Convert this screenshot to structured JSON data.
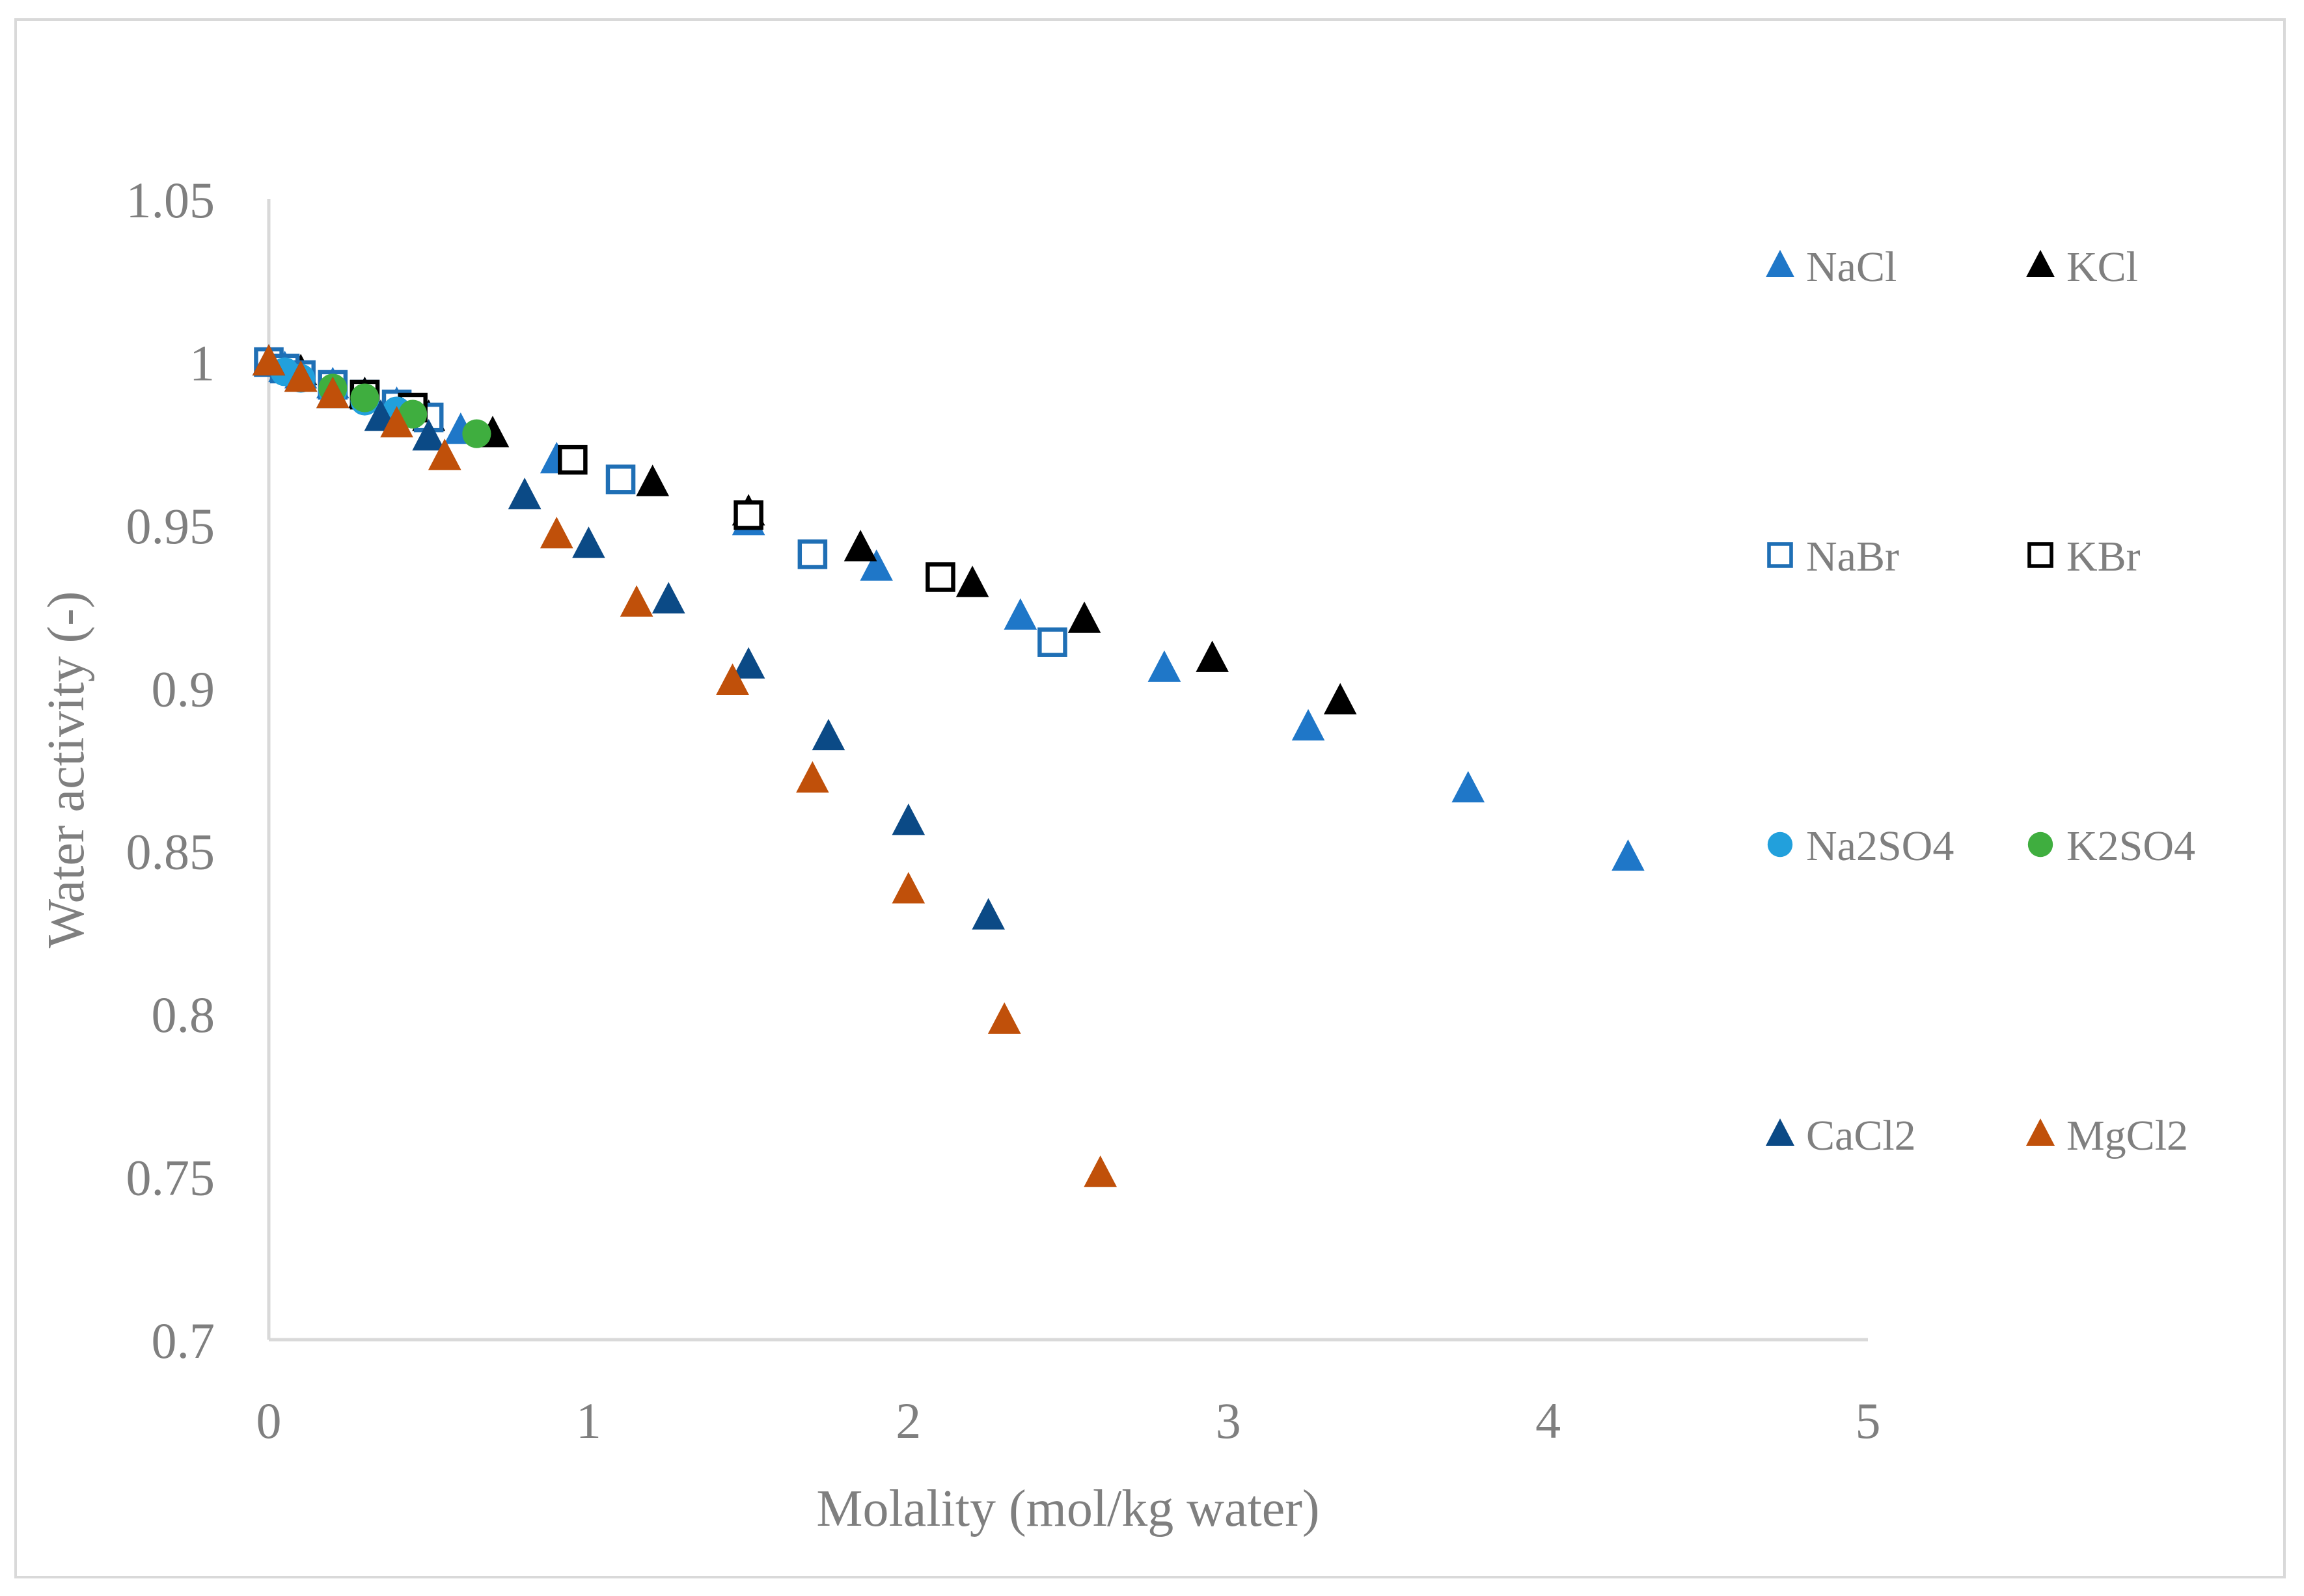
{
  "chart_data": {
    "type": "scatter",
    "xlabel": "Molality (mol/kg water)",
    "ylabel": "Water activity (-)",
    "xlim": [
      0,
      5
    ],
    "ylim": [
      0.7,
      1.05
    ],
    "xticks": [
      0,
      1,
      2,
      3,
      4,
      5
    ],
    "xtick_labels": [
      "0",
      "1",
      "2",
      "3",
      "4",
      "5"
    ],
    "yticks": [
      0.7,
      0.75,
      0.8,
      0.85,
      0.9,
      0.95,
      1,
      1.05
    ],
    "ytick_labels": [
      "0.7",
      "0.75",
      "0.8",
      "0.85",
      "0.9",
      "0.95",
      "1",
      "1.05"
    ],
    "grid": false,
    "legend_position": "right",
    "series": [
      {
        "name": "NaCl",
        "marker": "triangle",
        "color": "#1f77c8",
        "x": [
          0,
          0.05,
          0.1,
          0.2,
          0.3,
          0.4,
          0.5,
          0.6,
          0.9,
          1.5,
          1.9,
          2.35,
          2.8,
          3.25,
          3.75,
          4.25
        ],
        "y": [
          1,
          0.998,
          0.996,
          0.993,
          0.99,
          0.987,
          0.983,
          0.979,
          0.97,
          0.951,
          0.937,
          0.922,
          0.906,
          0.888,
          0.869,
          0.848
        ]
      },
      {
        "name": "KCl",
        "marker": "triangle",
        "color": "#000000",
        "x": [
          0.1,
          0.3,
          0.5,
          0.7,
          1.2,
          1.5,
          1.85,
          2.2,
          2.55,
          2.95,
          3.35
        ],
        "y": [
          0.997,
          0.99,
          0.983,
          0.978,
          0.963,
          0.954,
          0.943,
          0.932,
          0.921,
          0.909,
          0.896
        ]
      },
      {
        "name": "NaBr",
        "marker": "square-open",
        "color": "#1f6fb5",
        "x": [
          0,
          0.05,
          0.1,
          0.2,
          0.3,
          0.4,
          0.5,
          1.1,
          1.7,
          2.45
        ],
        "y": [
          1,
          0.998,
          0.996,
          0.993,
          0.99,
          0.987,
          0.983,
          0.964,
          0.941,
          0.914
        ]
      },
      {
        "name": "KBr",
        "marker": "square-open",
        "color": "#000000",
        "x": [
          0.3,
          0.45,
          0.95,
          1.5,
          2.1
        ],
        "y": [
          0.99,
          0.986,
          0.97,
          0.953,
          0.934
        ]
      },
      {
        "name": "Na2SO4",
        "marker": "circle",
        "color": "#22a0dc",
        "x": [
          0.05,
          0.1,
          0.2,
          0.3,
          0.4
        ],
        "y": [
          0.997,
          0.995,
          0.991,
          0.988,
          0.985
        ]
      },
      {
        "name": "K2SO4",
        "marker": "circle",
        "color": "#3fae3f",
        "x": [
          0.2,
          0.3,
          0.45,
          0.65
        ],
        "y": [
          0.992,
          0.989,
          0.984,
          0.978
        ]
      },
      {
        "name": "CaCl2",
        "marker": "triangle",
        "color": "#0b4a86",
        "x": [
          0,
          0.1,
          0.2,
          0.35,
          0.5,
          0.8,
          1.0,
          1.25,
          1.5,
          1.75,
          2.0,
          2.25
        ],
        "y": [
          1,
          0.995,
          0.99,
          0.983,
          0.977,
          0.959,
          0.944,
          0.927,
          0.907,
          0.885,
          0.859,
          0.83
        ]
      },
      {
        "name": "MgCl2",
        "marker": "triangle",
        "color": "#c0500a",
        "x": [
          0,
          0.1,
          0.2,
          0.4,
          0.55,
          0.9,
          1.15,
          1.45,
          1.7,
          2.0,
          2.3,
          2.6
        ],
        "y": [
          1,
          0.995,
          0.99,
          0.981,
          0.971,
          0.947,
          0.926,
          0.902,
          0.872,
          0.838,
          0.798,
          0.751
        ]
      }
    ]
  }
}
